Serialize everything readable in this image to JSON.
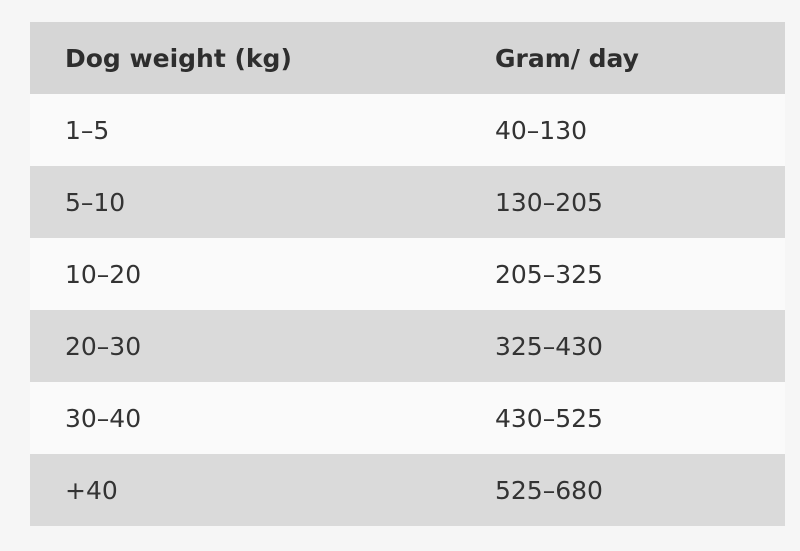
{
  "table": {
    "header": [
      "Dog weight (kg)",
      "Gram/ day"
    ],
    "rows": [
      [
        "1–5",
        "40–130"
      ],
      [
        "5–10",
        "130–205"
      ],
      [
        "10–20",
        "205–325"
      ],
      [
        "20–30",
        "325–430"
      ],
      [
        "30–40",
        "430–525"
      ],
      [
        "+40",
        "525–680"
      ]
    ]
  }
}
